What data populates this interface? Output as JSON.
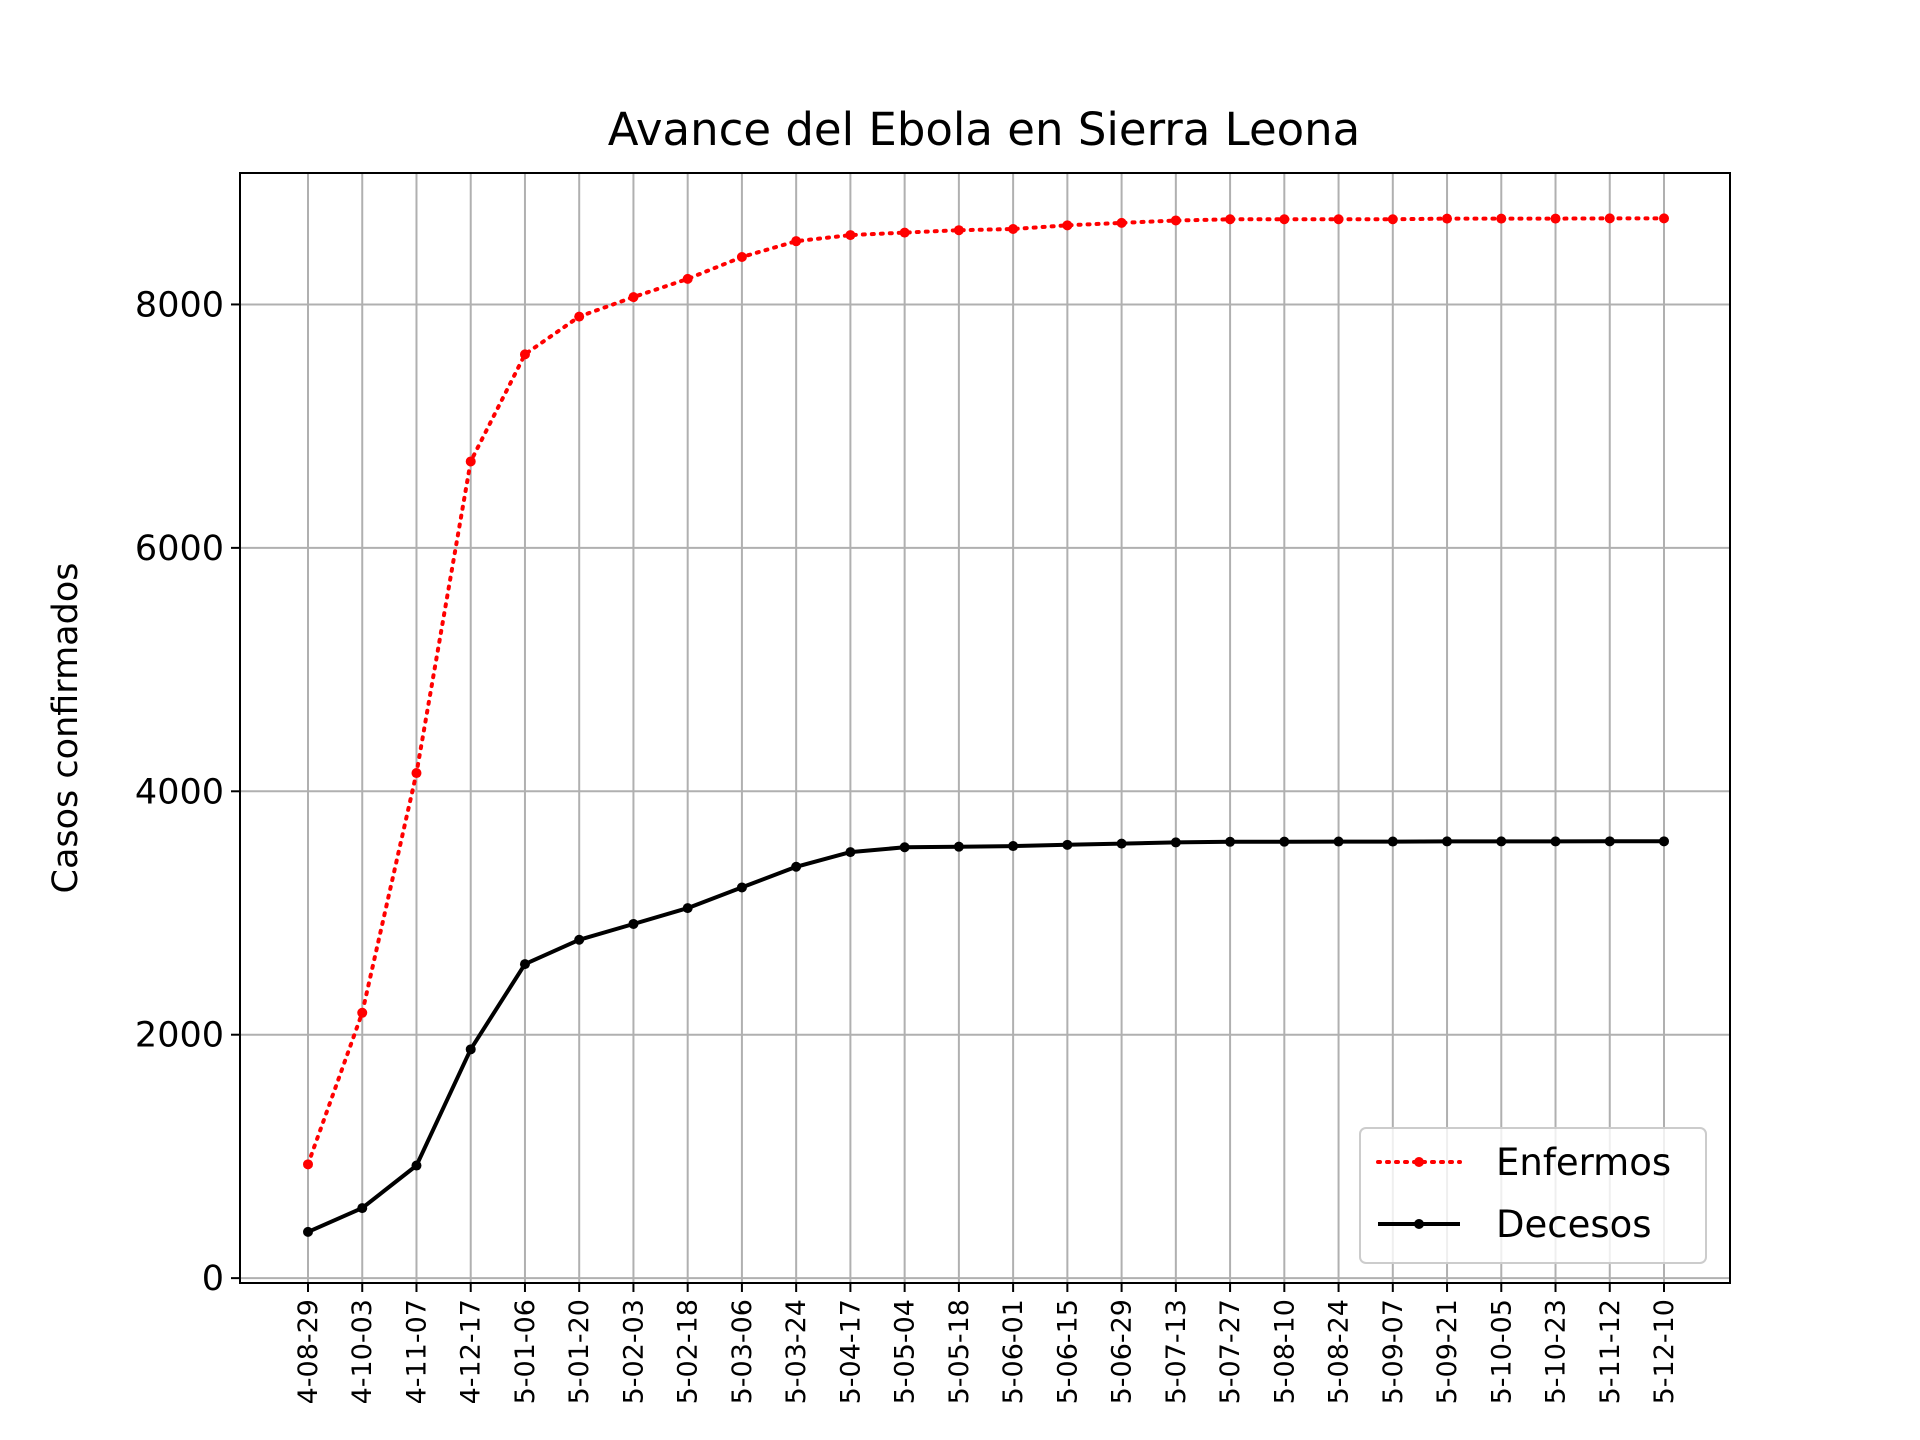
{
  "chart_data": {
    "type": "line",
    "title": "Avance del Ebola en Sierra Leona",
    "xlabel": "",
    "ylabel": "Casos confirmados",
    "categories": [
      "2014-08-29",
      "2014-10-03",
      "2014-11-07",
      "2014-12-17",
      "2015-01-06",
      "2015-01-20",
      "2015-02-03",
      "2015-02-18",
      "2015-03-06",
      "2015-03-24",
      "2015-04-17",
      "2015-05-04",
      "2015-05-18",
      "2015-06-01",
      "2015-06-15",
      "2015-06-29",
      "2015-07-13",
      "2015-07-27",
      "2015-08-10",
      "2015-08-24",
      "2015-09-07",
      "2015-09-21",
      "2015-10-05",
      "2015-10-23",
      "2015-11-12",
      "2015-12-10"
    ],
    "tick_labels": [
      "4-08-29",
      "4-10-03",
      "4-11-07",
      "4-12-17",
      "5-01-06",
      "5-01-20",
      "5-02-03",
      "5-02-18",
      "5-03-06",
      "5-03-24",
      "5-04-17",
      "5-05-04",
      "5-05-18",
      "5-06-01",
      "5-06-15",
      "5-06-29",
      "5-07-13",
      "5-07-27",
      "5-08-10",
      "5-08-24",
      "5-09-07",
      "5-09-21",
      "5-10-05",
      "5-10-23",
      "5-11-12",
      "5-12-10"
    ],
    "yticks": [
      0,
      2000,
      4000,
      6000,
      8000
    ],
    "ylim": [
      -40,
      9080
    ],
    "grid": true,
    "legend_position": "lower-right",
    "series": [
      {
        "name": "Enfermos",
        "color": "#ff0000",
        "line_style": "dotted",
        "marker": "dot",
        "values": [
          935,
          2180,
          4150,
          6710,
          7590,
          7900,
          8060,
          8210,
          8390,
          8520,
          8570,
          8590,
          8610,
          8620,
          8650,
          8670,
          8690,
          8700,
          8700,
          8700,
          8700,
          8705,
          8705,
          8705,
          8707,
          8707
        ]
      },
      {
        "name": "Decesos",
        "color": "#000000",
        "line_style": "solid",
        "marker": "dot",
        "values": [
          380,
          575,
          925,
          1880,
          2580,
          2780,
          2910,
          3040,
          3210,
          3380,
          3500,
          3540,
          3545,
          3550,
          3560,
          3570,
          3580,
          3585,
          3586,
          3587,
          3587,
          3588,
          3588,
          3588,
          3589,
          3589
        ]
      }
    ]
  }
}
